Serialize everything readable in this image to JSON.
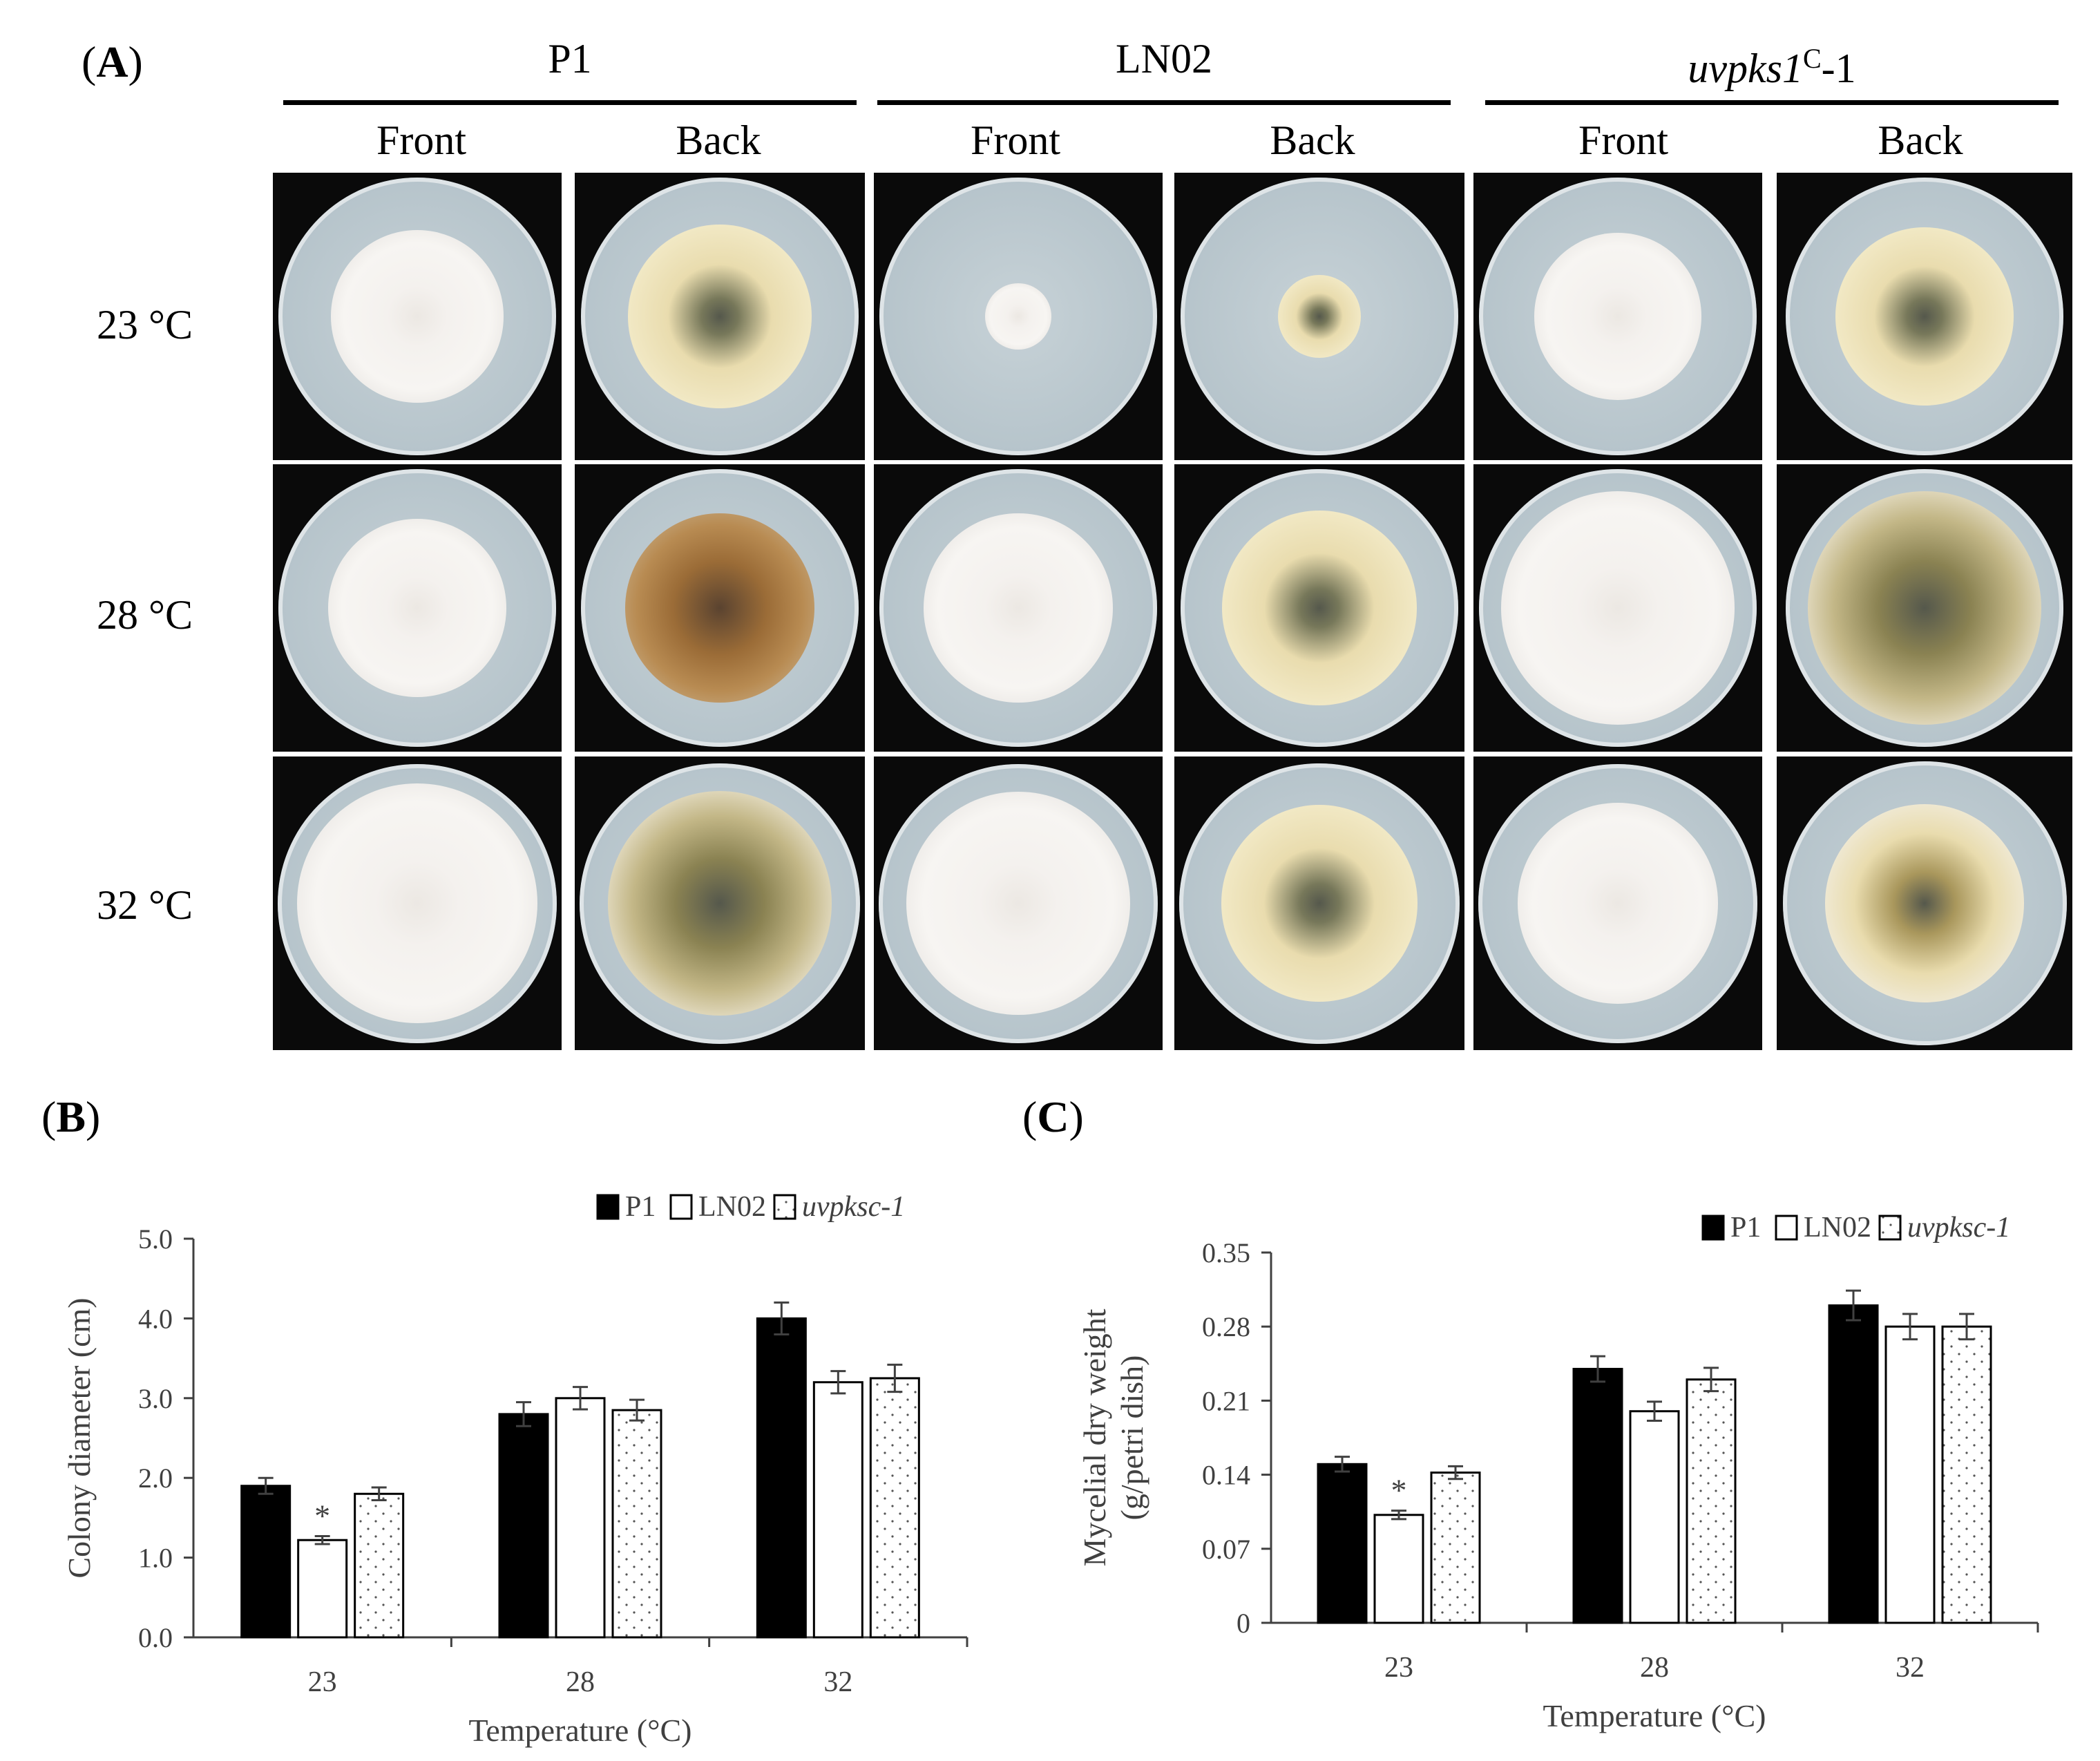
{
  "panel_a": {
    "letter": "A",
    "strains": [
      {
        "name_main": "P1",
        "name_sup": "",
        "name_tail": "",
        "italic": false
      },
      {
        "name_main": "LN02",
        "name_sup": "",
        "name_tail": "",
        "italic": false
      },
      {
        "name_main": "uvpks1",
        "name_sup": "C",
        "name_tail": "-1",
        "italic": true
      }
    ],
    "views": [
      "Front",
      "Back"
    ],
    "temperatures": [
      "23 °C",
      "28 °C",
      "32 °C"
    ],
    "colony_colors": {
      "medium": "#b6c4cb",
      "white": "#f4f1ee",
      "cream": "#e9dcae",
      "olive": "#8a8252",
      "brown": "#9b6c37",
      "dark": "#55584c"
    }
  },
  "chart_data": [
    {
      "panel_letter": "B",
      "type": "bar",
      "title": "",
      "xlabel": "Temperature (°C)",
      "ylabel": "Colony diameter (cm)",
      "categories": [
        "23",
        "28",
        "32"
      ],
      "ylim": [
        0,
        5
      ],
      "yticks": [
        "0.0",
        "1.0",
        "2.0",
        "3.0",
        "4.0",
        "5.0"
      ],
      "ytick_values": [
        0,
        1,
        2,
        3,
        4,
        5
      ],
      "legend_position": "top-right",
      "series": [
        {
          "name": "P1",
          "fill": "solid",
          "color": "#000000",
          "values": [
            1.9,
            2.8,
            4.0
          ],
          "errors": [
            0.1,
            0.15,
            0.2
          ]
        },
        {
          "name": "LN02",
          "fill": "open",
          "color": "#ffffff",
          "values": [
            1.22,
            3.0,
            3.2
          ],
          "errors": [
            0.05,
            0.14,
            0.14
          ]
        },
        {
          "name": "uvpksc-1",
          "fill": "dotted",
          "color": "#ffffff",
          "values": [
            1.8,
            2.85,
            3.25
          ],
          "errors": [
            0.08,
            0.13,
            0.17
          ]
        }
      ],
      "annotations": [
        {
          "category": "23",
          "series": "LN02",
          "text": "*"
        }
      ]
    },
    {
      "panel_letter": "C",
      "type": "bar",
      "title": "",
      "xlabel": "Temperature (°C)",
      "ylabel_lines": [
        "Mycelial dry weight",
        "(g/petri dish)"
      ],
      "categories": [
        "23",
        "28",
        "32"
      ],
      "ylim": [
        0,
        0.35
      ],
      "yticks": [
        "0",
        "0.07",
        "0.14",
        "0.21",
        "0.28",
        "0.35"
      ],
      "ytick_values": [
        0,
        0.07,
        0.14,
        0.21,
        0.28,
        0.35
      ],
      "legend_position": "top-right",
      "series": [
        {
          "name": "P1",
          "fill": "solid",
          "color": "#000000",
          "values": [
            0.15,
            0.24,
            0.3
          ],
          "errors": [
            0.007,
            0.012,
            0.014
          ]
        },
        {
          "name": "LN02",
          "fill": "open",
          "color": "#ffffff",
          "values": [
            0.102,
            0.2,
            0.28
          ],
          "errors": [
            0.004,
            0.009,
            0.012
          ]
        },
        {
          "name": "uvpksc-1",
          "fill": "dotted",
          "color": "#ffffff",
          "values": [
            0.142,
            0.23,
            0.28
          ],
          "errors": [
            0.006,
            0.011,
            0.012
          ]
        }
      ],
      "annotations": [
        {
          "category": "23",
          "series": "LN02",
          "text": "*"
        }
      ]
    }
  ]
}
